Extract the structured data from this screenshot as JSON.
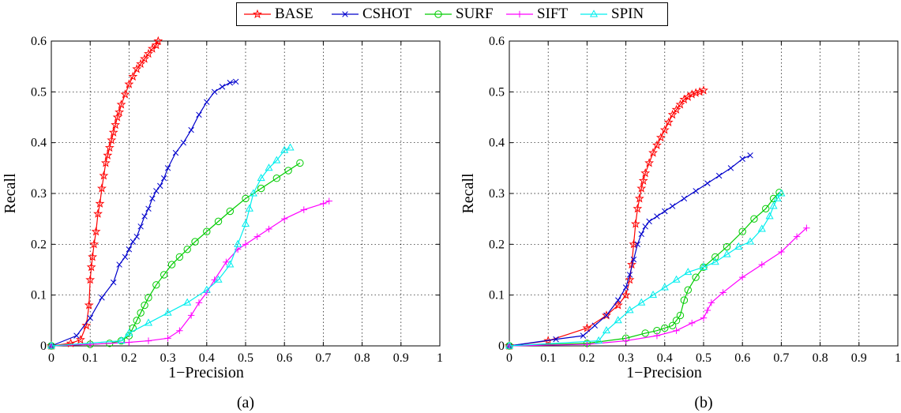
{
  "legend": [
    {
      "name": "BASE",
      "color": "#ff0000",
      "marker": "star"
    },
    {
      "name": "CSHOT",
      "color": "#0000cc",
      "marker": "x"
    },
    {
      "name": "SURF",
      "color": "#00cc00",
      "marker": "circle"
    },
    {
      "name": "SIFT",
      "color": "#ff00ff",
      "marker": "plus"
    },
    {
      "name": "SPIN",
      "color": "#00eeee",
      "marker": "triangle"
    }
  ],
  "chart_data": [
    {
      "type": "line",
      "caption": "(a)",
      "xlabel": "1−Precision",
      "ylabel": "Recall",
      "xlim": [
        0,
        1
      ],
      "ylim": [
        0,
        0.6
      ],
      "xticks": [
        "0",
        "0.1",
        "0.2",
        "0.3",
        "0.4",
        "0.5",
        "0.6",
        "0.7",
        "0.8",
        "0.9",
        "1"
      ],
      "yticks": [
        "0",
        "0.1",
        "0.2",
        "0.3",
        "0.4",
        "0.5",
        "0.6"
      ],
      "grid": true,
      "series": [
        {
          "name": "BASE",
          "color": "#ff0000",
          "marker": "star",
          "x": [
            0,
            0.05,
            0.075,
            0.09,
            0.097,
            0.1,
            0.103,
            0.106,
            0.11,
            0.115,
            0.12,
            0.125,
            0.13,
            0.135,
            0.14,
            0.145,
            0.15,
            0.155,
            0.16,
            0.165,
            0.17,
            0.175,
            0.18,
            0.19,
            0.2,
            0.21,
            0.22,
            0.23,
            0.24,
            0.25,
            0.26,
            0.27,
            0.275
          ],
          "y": [
            0,
            0.005,
            0.012,
            0.04,
            0.08,
            0.13,
            0.155,
            0.175,
            0.2,
            0.225,
            0.26,
            0.28,
            0.31,
            0.335,
            0.36,
            0.375,
            0.39,
            0.405,
            0.42,
            0.435,
            0.45,
            0.46,
            0.475,
            0.495,
            0.515,
            0.53,
            0.545,
            0.555,
            0.565,
            0.575,
            0.585,
            0.592,
            0.6
          ]
        },
        {
          "name": "CSHOT",
          "color": "#0000cc",
          "marker": "x",
          "x": [
            0,
            0.065,
            0.1,
            0.13,
            0.16,
            0.175,
            0.19,
            0.2,
            0.21,
            0.22,
            0.23,
            0.24,
            0.25,
            0.26,
            0.27,
            0.28,
            0.29,
            0.3,
            0.32,
            0.34,
            0.36,
            0.38,
            0.4,
            0.42,
            0.44,
            0.46,
            0.475
          ],
          "y": [
            0,
            0.02,
            0.055,
            0.095,
            0.125,
            0.16,
            0.175,
            0.19,
            0.205,
            0.215,
            0.235,
            0.255,
            0.27,
            0.29,
            0.305,
            0.315,
            0.33,
            0.35,
            0.38,
            0.4,
            0.425,
            0.455,
            0.48,
            0.5,
            0.51,
            0.518,
            0.52
          ]
        },
        {
          "name": "SURF",
          "color": "#00cc00",
          "marker": "circle",
          "x": [
            0,
            0.1,
            0.15,
            0.18,
            0.2,
            0.21,
            0.22,
            0.23,
            0.24,
            0.25,
            0.27,
            0.29,
            0.31,
            0.33,
            0.35,
            0.37,
            0.4,
            0.43,
            0.46,
            0.5,
            0.54,
            0.58,
            0.61,
            0.64
          ],
          "y": [
            0,
            0.003,
            0.005,
            0.01,
            0.02,
            0.035,
            0.05,
            0.065,
            0.08,
            0.095,
            0.12,
            0.14,
            0.16,
            0.175,
            0.19,
            0.205,
            0.225,
            0.245,
            0.265,
            0.29,
            0.31,
            0.33,
            0.345,
            0.36
          ]
        },
        {
          "name": "SIFT",
          "color": "#ff00ff",
          "marker": "plus",
          "x": [
            0,
            0.1,
            0.2,
            0.25,
            0.3,
            0.33,
            0.36,
            0.38,
            0.4,
            0.42,
            0.45,
            0.48,
            0.5,
            0.53,
            0.56,
            0.6,
            0.65,
            0.7,
            0.715
          ],
          "y": [
            0,
            0.003,
            0.007,
            0.01,
            0.015,
            0.03,
            0.06,
            0.085,
            0.105,
            0.13,
            0.165,
            0.19,
            0.2,
            0.215,
            0.23,
            0.25,
            0.268,
            0.28,
            0.285
          ]
        },
        {
          "name": "SPIN",
          "color": "#00eeee",
          "marker": "triangle",
          "x": [
            0,
            0.18,
            0.2,
            0.25,
            0.3,
            0.35,
            0.4,
            0.43,
            0.46,
            0.48,
            0.5,
            0.51,
            0.52,
            0.54,
            0.56,
            0.58,
            0.6,
            0.615
          ],
          "y": [
            0,
            0.01,
            0.025,
            0.045,
            0.065,
            0.085,
            0.11,
            0.13,
            0.16,
            0.2,
            0.24,
            0.27,
            0.3,
            0.33,
            0.35,
            0.365,
            0.385,
            0.39
          ]
        }
      ]
    },
    {
      "type": "line",
      "caption": "(b)",
      "xlabel": "1−Precision",
      "ylabel": "Recall",
      "xlim": [
        0,
        1
      ],
      "ylim": [
        0,
        0.6
      ],
      "xticks": [
        "0",
        "0.1",
        "0.2",
        "0.3",
        "0.4",
        "0.5",
        "0.6",
        "0.7",
        "0.8",
        "0.9",
        "1"
      ],
      "yticks": [
        "0",
        "0.1",
        "0.2",
        "0.3",
        "0.4",
        "0.5",
        "0.6"
      ],
      "grid": true,
      "series": [
        {
          "name": "BASE",
          "color": "#ff0000",
          "marker": "star",
          "x": [
            0,
            0.1,
            0.2,
            0.25,
            0.28,
            0.3,
            0.31,
            0.315,
            0.32,
            0.325,
            0.33,
            0.335,
            0.34,
            0.345,
            0.35,
            0.36,
            0.37,
            0.38,
            0.39,
            0.4,
            0.41,
            0.42,
            0.43,
            0.44,
            0.45,
            0.46,
            0.47,
            0.48,
            0.49,
            0.5
          ],
          "y": [
            0,
            0.01,
            0.035,
            0.06,
            0.08,
            0.1,
            0.13,
            0.16,
            0.2,
            0.24,
            0.27,
            0.29,
            0.31,
            0.325,
            0.34,
            0.36,
            0.38,
            0.395,
            0.41,
            0.425,
            0.44,
            0.455,
            0.465,
            0.475,
            0.485,
            0.49,
            0.495,
            0.498,
            0.5,
            0.503
          ]
        },
        {
          "name": "CSHOT",
          "color": "#0000cc",
          "marker": "x",
          "x": [
            0,
            0.12,
            0.19,
            0.22,
            0.25,
            0.28,
            0.3,
            0.31,
            0.32,
            0.33,
            0.34,
            0.35,
            0.36,
            0.38,
            0.4,
            0.42,
            0.45,
            0.48,
            0.51,
            0.54,
            0.57,
            0.6,
            0.62
          ],
          "y": [
            0,
            0.013,
            0.02,
            0.04,
            0.06,
            0.09,
            0.115,
            0.14,
            0.17,
            0.2,
            0.22,
            0.235,
            0.245,
            0.255,
            0.265,
            0.275,
            0.29,
            0.305,
            0.32,
            0.335,
            0.35,
            0.368,
            0.375
          ]
        },
        {
          "name": "SURF",
          "color": "#00cc00",
          "marker": "circle",
          "x": [
            0,
            0.2,
            0.3,
            0.35,
            0.38,
            0.4,
            0.42,
            0.43,
            0.44,
            0.45,
            0.46,
            0.48,
            0.5,
            0.53,
            0.56,
            0.6,
            0.63,
            0.66,
            0.68,
            0.695
          ],
          "y": [
            0,
            0.005,
            0.015,
            0.025,
            0.03,
            0.035,
            0.04,
            0.05,
            0.06,
            0.09,
            0.11,
            0.135,
            0.155,
            0.175,
            0.195,
            0.225,
            0.25,
            0.27,
            0.29,
            0.302
          ]
        },
        {
          "name": "SIFT",
          "color": "#ff00ff",
          "marker": "plus",
          "x": [
            0,
            0.2,
            0.3,
            0.38,
            0.43,
            0.47,
            0.5,
            0.51,
            0.52,
            0.55,
            0.6,
            0.65,
            0.7,
            0.74,
            0.765
          ],
          "y": [
            0,
            0.003,
            0.01,
            0.02,
            0.03,
            0.045,
            0.055,
            0.07,
            0.085,
            0.105,
            0.135,
            0.16,
            0.185,
            0.215,
            0.232
          ]
        },
        {
          "name": "SPIN",
          "color": "#00eeee",
          "marker": "triangle",
          "x": [
            0,
            0.23,
            0.25,
            0.28,
            0.31,
            0.34,
            0.37,
            0.4,
            0.43,
            0.46,
            0.5,
            0.53,
            0.56,
            0.59,
            0.62,
            0.65,
            0.67,
            0.68,
            0.69,
            0.7
          ],
          "y": [
            0,
            0.01,
            0.03,
            0.05,
            0.07,
            0.085,
            0.1,
            0.115,
            0.13,
            0.145,
            0.155,
            0.165,
            0.18,
            0.195,
            0.205,
            0.23,
            0.255,
            0.275,
            0.29,
            0.3
          ]
        }
      ]
    }
  ]
}
